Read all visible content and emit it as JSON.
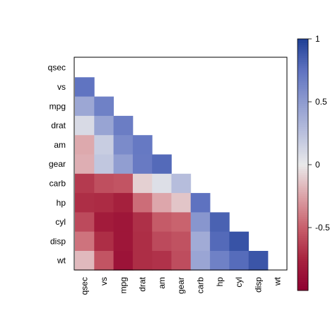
{
  "chart_data": {
    "type": "heatmap",
    "title": "",
    "xlabel": "",
    "ylabel": "",
    "variables": [
      "qsec",
      "vs",
      "mpg",
      "drat",
      "am",
      "gear",
      "carb",
      "hp",
      "cyl",
      "disp",
      "wt"
    ],
    "matrix": [
      [
        null,
        null,
        null,
        null,
        null,
        null,
        null,
        null,
        null,
        null,
        null
      ],
      [
        0.74,
        null,
        null,
        null,
        null,
        null,
        null,
        null,
        null,
        null,
        null
      ],
      [
        0.42,
        0.66,
        null,
        null,
        null,
        null,
        null,
        null,
        null,
        null,
        null
      ],
      [
        0.09,
        0.44,
        0.68,
        null,
        null,
        null,
        null,
        null,
        null,
        null,
        null
      ],
      [
        -0.23,
        0.17,
        0.6,
        0.71,
        null,
        null,
        null,
        null,
        null,
        null,
        null
      ],
      [
        -0.21,
        0.21,
        0.48,
        0.7,
        0.79,
        null,
        null,
        null,
        null,
        null,
        null
      ],
      [
        -0.66,
        -0.57,
        -0.55,
        -0.09,
        0.06,
        0.27,
        null,
        null,
        null,
        null,
        null
      ],
      [
        -0.71,
        -0.72,
        -0.78,
        -0.45,
        -0.24,
        -0.13,
        0.75,
        null,
        null,
        null,
        null
      ],
      [
        -0.59,
        -0.81,
        -0.85,
        -0.7,
        -0.52,
        -0.49,
        0.53,
        0.83,
        null,
        null,
        null
      ],
      [
        -0.43,
        -0.71,
        -0.85,
        -0.71,
        -0.59,
        -0.56,
        0.39,
        0.79,
        0.9,
        null,
        null
      ],
      [
        -0.17,
        -0.55,
        -0.87,
        -0.71,
        -0.69,
        -0.58,
        0.43,
        0.66,
        0.78,
        0.89,
        null
      ]
    ],
    "color_scale": {
      "min": -1,
      "max": 1,
      "low_color": "#67001F",
      "mid_color": "#EEEEEE",
      "high_color": "#053061",
      "ticks": [
        {
          "value": 1,
          "label": "1"
        },
        {
          "value": 0.5,
          "label": "0.5"
        },
        {
          "value": 0,
          "label": "0"
        },
        {
          "value": -0.5,
          "label": "-0.5"
        }
      ]
    },
    "legend_placement": "right",
    "grid": false
  }
}
